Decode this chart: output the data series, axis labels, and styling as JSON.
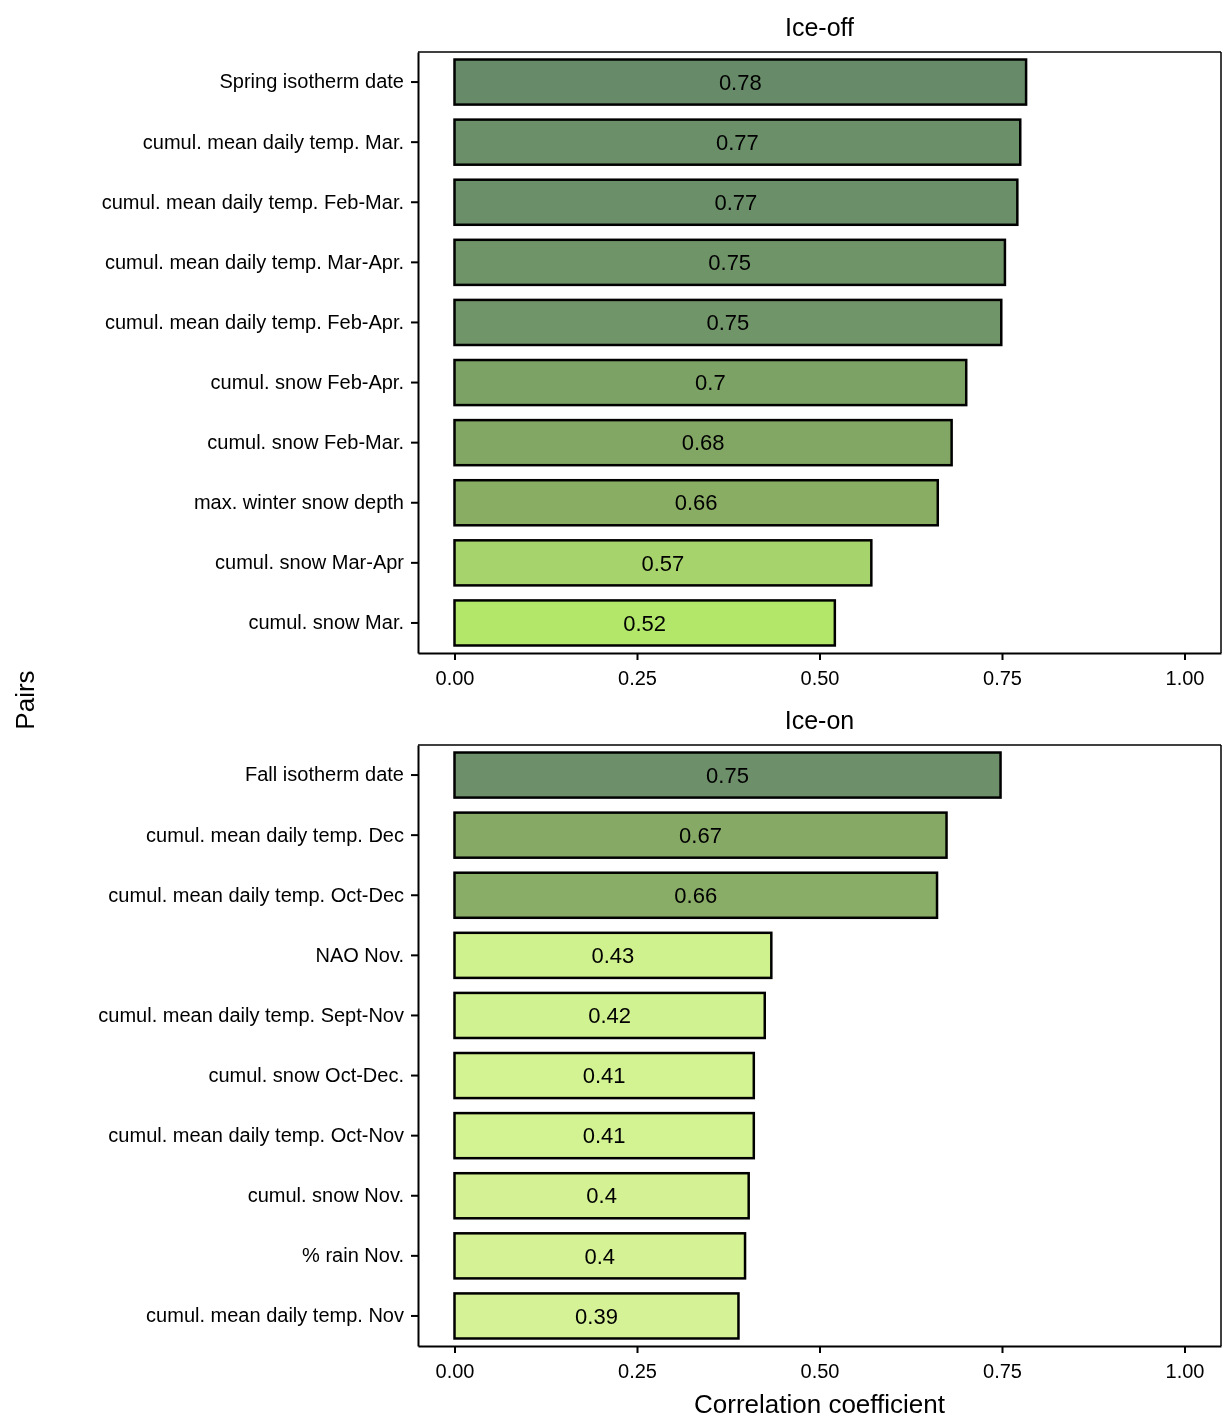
{
  "chart_data": [
    {
      "type": "bar",
      "orientation": "horizontal",
      "title": "Ice-off",
      "ylabel": "Pairs",
      "categories": [
        "Spring isotherm date",
        "cumul. mean daily temp. Mar.",
        "cumul. mean daily temp. Feb-Mar.",
        "cumul. mean daily temp. Mar-Apr.",
        "cumul. mean daily temp. Feb-Apr.",
        "cumul. snow Feb-Apr.",
        "cumul. snow Feb-Mar.",
        "max. winter snow depth",
        "cumul. snow Mar-Apr",
        "cumul. snow Mar."
      ],
      "values": [
        0.783,
        0.775,
        0.771,
        0.754,
        0.749,
        0.701,
        0.681,
        0.662,
        0.571,
        0.521
      ],
      "value_labels": [
        "0.78",
        "0.77",
        "0.77",
        "0.75",
        "0.75",
        "0.7",
        "0.68",
        "0.66",
        "0.57",
        "0.52"
      ],
      "colors": [
        "#678b69",
        "#6a8f69",
        "#6b9069",
        "#6f9468",
        "#709568",
        "#7da265",
        "#82a764",
        "#88ad63",
        "#a6d36b",
        "#b2e76a"
      ],
      "xlim": [
        -0.05,
        1.05
      ],
      "xticks": [
        {
          "value": 0,
          "label": "0.00"
        },
        {
          "value": 0.25,
          "label": "0.25"
        },
        {
          "value": 0.5,
          "label": "0.50"
        },
        {
          "value": 0.75,
          "label": "0.75"
        },
        {
          "value": 1,
          "label": "1.00"
        }
      ],
      "grid": false
    },
    {
      "type": "bar",
      "orientation": "horizontal",
      "title": "Ice-on",
      "xlabel": "Correlation coefficient",
      "categories": [
        "Fall isotherm date",
        "cumul. mean daily temp. Dec",
        "cumul. mean daily temp. Oct-Dec",
        "NAO Nov.",
        "cumul. mean daily temp. Sept-Nov",
        "cumul. snow Oct-Dec.",
        "cumul. mean daily temp. Oct-Nov",
        "cumul. snow Nov.",
        "% rain Nov.",
        "cumul. mean daily temp. Nov"
      ],
      "values": [
        0.748,
        0.674,
        0.661,
        0.434,
        0.425,
        0.41,
        0.41,
        0.403,
        0.398,
        0.389
      ],
      "value_labels": [
        "0.75",
        "0.67",
        "0.66",
        "0.43",
        "0.42",
        "0.41",
        "0.41",
        "0.4",
        "0.4",
        "0.39"
      ],
      "colors": [
        "#6d8f6a",
        "#86aa66",
        "#89ad66",
        "#d0f28e",
        "#d1f290",
        "#d3f292",
        "#d3f292",
        "#d4f294",
        "#d5f295",
        "#d6f297"
      ],
      "xlim": [
        -0.05,
        1.05
      ],
      "xticks": [
        {
          "value": 0,
          "label": "0.00"
        },
        {
          "value": 0.25,
          "label": "0.25"
        },
        {
          "value": 0.5,
          "label": "0.50"
        },
        {
          "value": 0.75,
          "label": "0.75"
        },
        {
          "value": 1,
          "label": "1.00"
        }
      ],
      "grid": false
    }
  ]
}
